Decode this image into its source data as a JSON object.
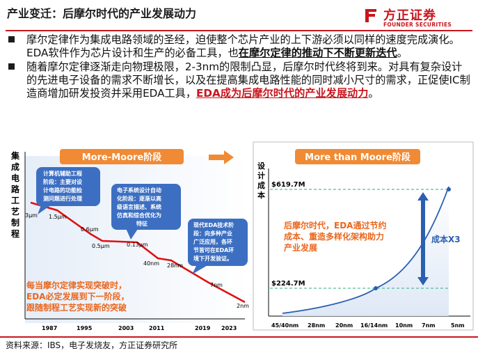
{
  "header": {
    "title": "产业变迁：后摩尔时代的产业发展动力",
    "brand_cn": "方正证券",
    "brand_en": "FOUNDER SECURITIES"
  },
  "bullets": [
    {
      "plain": "摩尔定律作为集成电路领域的圣经，迫使整个芯片产业的上下游必须以同样的速度完成演化。EDA软件作为芯片设计和生产的必备工具，也",
      "emphasis": "在摩尔定律的推动下不断更新迭代",
      "tail": "。"
    },
    {
      "plain": "随着摩尔定律逐渐走向物理极限，2-3nm的限制凸显，后摩尔时代终将到来。对具有复杂设计的先进电子设备的需求不断增长，以及在提高集成电路性能的同时减小尺寸的需求，正促使IC制造商增加研发投资并采用EDA工具，",
      "emphasis": "EDA成为后摩尔时代的产业发展动力",
      "tail": "。"
    }
  ],
  "left_chart": {
    "banner": "More-Moore阶段",
    "y_label": "集成电路工艺制程",
    "years": [
      "1987",
      "1995",
      "2003",
      "2011",
      "2019",
      "2023"
    ],
    "points": [
      "3μm",
      "1.5μm",
      "0.6μm",
      "0.5μm",
      "0.13μm",
      "40nm",
      "28nm",
      "7nm",
      "2nm"
    ],
    "callout_1": [
      "计算机辅助工程",
      "阶段：主要对设",
      "计电路的功能检",
      "测问题进行处理"
    ],
    "callout_2": [
      "电子系统设计自动",
      "化阶段：逐渐以高",
      "级语言描述、系统",
      "仿真和综合优化为",
      "特征"
    ],
    "callout_3": [
      "现代EDA技术阶",
      "段：向多种产业",
      "广泛应用，各环",
      "节皆可在EDA环",
      "境下开发验证。"
    ],
    "bottom_note": [
      "每当摩尔定律实现突破时，",
      "EDA必定发展到下一阶段，",
      "跟随制程工艺实现新的突破"
    ]
  },
  "right_chart": {
    "banner": "More than Moore阶段",
    "y_label": "设计成本",
    "top_value": "$619.7M",
    "bottom_value": "$224.7M",
    "multiplier": "成本X3",
    "nodes": [
      "45/40nm",
      "28nm",
      "20nm",
      "16/14nm",
      "10nm",
      "7nm",
      "5nm"
    ],
    "note": [
      "后摩尔时代，EDA通过节约",
      "成本、重造多样化架构助力",
      "产业发展"
    ]
  },
  "chart_data": {
    "type": "line",
    "title": "",
    "xlabel": "",
    "ylabel": "设计成本",
    "categories": [
      "45/40nm",
      "28nm",
      "20nm",
      "16/14nm",
      "10nm",
      "7nm",
      "5nm"
    ],
    "series": [
      {
        "values": [
          null,
          null,
          null,
          224.7,
          null,
          null,
          619.7
        ]
      }
    ],
    "annotations": [
      "$619.7M",
      "$224.7M",
      "成本X3"
    ]
  },
  "footer": {
    "source": "资料来源：IBS，电子发烧友，方正证券研究所"
  },
  "colors": {
    "brand_red": "#c8161d",
    "banner_orange": "#f08a34",
    "callout_blue": "#3c6fc2",
    "curve_blue": "#2b5fb0",
    "note_orange": "#e9671e"
  }
}
